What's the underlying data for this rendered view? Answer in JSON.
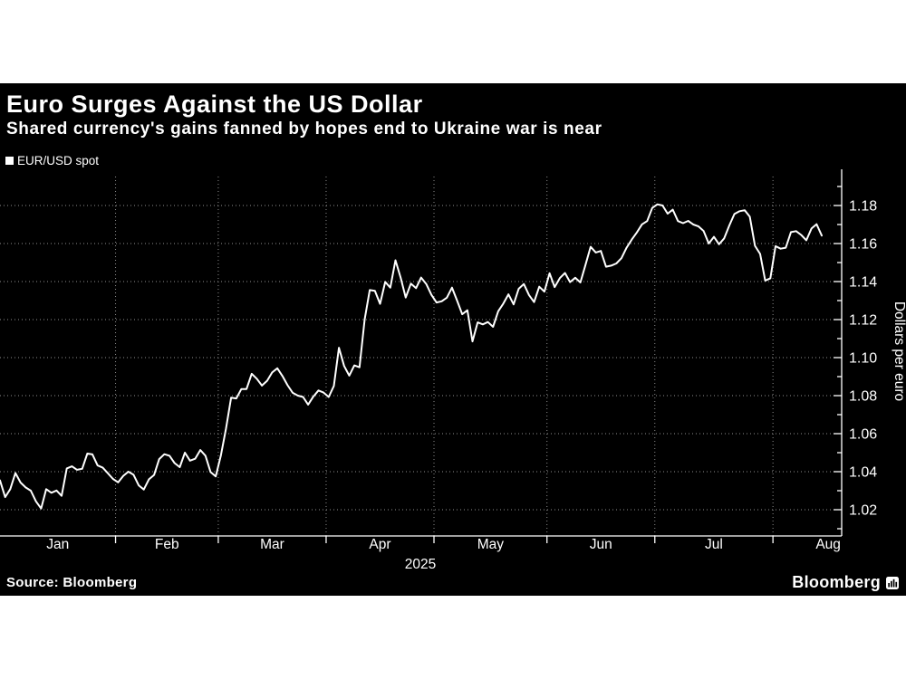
{
  "header": {
    "title": "Euro Surges Against the US Dollar",
    "subtitle": "Shared currency's gains fanned by hopes end to Ukraine war is near"
  },
  "legend": {
    "label": "EUR/USD spot"
  },
  "footer": {
    "source": "Source: Bloomberg",
    "brand": "Bloomberg"
  },
  "colors": {
    "background": "#000000",
    "text": "#ffffff",
    "line": "#ffffff",
    "grid": "#8f8f8f",
    "axis": "#ffffff"
  },
  "chart_data": {
    "type": "line",
    "title": "Euro Surges Against the US Dollar",
    "xlabel": "2025",
    "ylabel": "Dollars per euro",
    "year_label": "2025",
    "x_months": [
      "Jan",
      "Feb",
      "Mar",
      "Apr",
      "May",
      "Jun",
      "Jul",
      "Aug"
    ],
    "y_ticks": [
      1.02,
      1.04,
      1.06,
      1.08,
      1.1,
      1.12,
      1.14,
      1.16,
      1.18
    ],
    "ylim": [
      1.006,
      1.195
    ],
    "grid": true,
    "legend_position": "top-left",
    "series": [
      {
        "name": "EUR/USD spot",
        "points": [
          [
            "12/31",
            1.0354
          ],
          [
            "1/2",
            1.0266
          ],
          [
            "1/3",
            1.0308
          ],
          [
            "1/6",
            1.0393
          ],
          [
            "1/7",
            1.0343
          ],
          [
            "1/8",
            1.0317
          ],
          [
            "1/9",
            1.03
          ],
          [
            "1/10",
            1.0244
          ],
          [
            "1/13",
            1.0206
          ],
          [
            "1/14",
            1.0308
          ],
          [
            "1/15",
            1.0289
          ],
          [
            "1/16",
            1.0301
          ],
          [
            "1/17",
            1.0273
          ],
          [
            "1/20",
            1.0417
          ],
          [
            "1/21",
            1.0428
          ],
          [
            "1/22",
            1.041
          ],
          [
            "1/23",
            1.0415
          ],
          [
            "1/24",
            1.0495
          ],
          [
            "1/27",
            1.0491
          ],
          [
            "1/28",
            1.0433
          ],
          [
            "1/29",
            1.0421
          ],
          [
            "1/30",
            1.0392
          ],
          [
            "1/31",
            1.0362
          ],
          [
            "2/3",
            1.0344
          ],
          [
            "2/4",
            1.0378
          ],
          [
            "2/5",
            1.04
          ],
          [
            "2/6",
            1.0384
          ],
          [
            "2/7",
            1.0328
          ],
          [
            "2/10",
            1.0306
          ],
          [
            "2/11",
            1.036
          ],
          [
            "2/12",
            1.0383
          ],
          [
            "2/13",
            1.0466
          ],
          [
            "2/14",
            1.0492
          ],
          [
            "2/17",
            1.0484
          ],
          [
            "2/18",
            1.0445
          ],
          [
            "2/19",
            1.0424
          ],
          [
            "2/20",
            1.05
          ],
          [
            "2/21",
            1.0458
          ],
          [
            "2/24",
            1.0468
          ],
          [
            "2/25",
            1.0514
          ],
          [
            "2/26",
            1.0484
          ],
          [
            "2/27",
            1.0398
          ],
          [
            "2/28",
            1.0375
          ],
          [
            "3/3",
            1.0485
          ],
          [
            "3/4",
            1.0625
          ],
          [
            "3/5",
            1.0789
          ],
          [
            "3/6",
            1.0785
          ],
          [
            "3/7",
            1.0835
          ],
          [
            "3/10",
            1.0835
          ],
          [
            "3/11",
            1.0915
          ],
          [
            "3/12",
            1.0889
          ],
          [
            "3/13",
            1.0853
          ],
          [
            "3/14",
            1.0878
          ],
          [
            "3/17",
            1.0922
          ],
          [
            "3/18",
            1.0944
          ],
          [
            "3/19",
            1.0903
          ],
          [
            "3/20",
            1.0855
          ],
          [
            "3/21",
            1.0815
          ],
          [
            "3/24",
            1.08
          ],
          [
            "3/25",
            1.0793
          ],
          [
            "3/26",
            1.0753
          ],
          [
            "3/27",
            1.0795
          ],
          [
            "3/28",
            1.0827
          ],
          [
            "3/31",
            1.0816
          ],
          [
            "4/1",
            1.0793
          ],
          [
            "4/2",
            1.0851
          ],
          [
            "4/3",
            1.1052
          ],
          [
            "4/4",
            1.0956
          ],
          [
            "4/7",
            1.0905
          ],
          [
            "4/8",
            1.0959
          ],
          [
            "4/9",
            1.0949
          ],
          [
            "4/10",
            1.1201
          ],
          [
            "4/11",
            1.1355
          ],
          [
            "4/14",
            1.1351
          ],
          [
            "4/15",
            1.1283
          ],
          [
            "4/16",
            1.1398
          ],
          [
            "4/17",
            1.1368
          ],
          [
            "4/21",
            1.1512
          ],
          [
            "4/22",
            1.1421
          ],
          [
            "4/23",
            1.1316
          ],
          [
            "4/24",
            1.1389
          ],
          [
            "4/25",
            1.1365
          ],
          [
            "4/28",
            1.1421
          ],
          [
            "4/29",
            1.1387
          ],
          [
            "4/30",
            1.133
          ],
          [
            "5/1",
            1.129
          ],
          [
            "5/2",
            1.1296
          ],
          [
            "5/5",
            1.1315
          ],
          [
            "5/6",
            1.1368
          ],
          [
            "5/7",
            1.13
          ],
          [
            "5/8",
            1.1228
          ],
          [
            "5/9",
            1.1249
          ],
          [
            "5/12",
            1.1085
          ],
          [
            "5/13",
            1.1185
          ],
          [
            "5/14",
            1.1175
          ],
          [
            "5/15",
            1.1187
          ],
          [
            "5/16",
            1.1162
          ],
          [
            "5/19",
            1.1244
          ],
          [
            "5/20",
            1.1284
          ],
          [
            "5/21",
            1.1333
          ],
          [
            "5/22",
            1.128
          ],
          [
            "5/23",
            1.1362
          ],
          [
            "5/26",
            1.1387
          ],
          [
            "5/27",
            1.1329
          ],
          [
            "5/28",
            1.1292
          ],
          [
            "5/29",
            1.1373
          ],
          [
            "5/30",
            1.1347
          ],
          [
            "6/2",
            1.1444
          ],
          [
            "6/3",
            1.1371
          ],
          [
            "6/4",
            1.1418
          ],
          [
            "6/5",
            1.1445
          ],
          [
            "6/6",
            1.1397
          ],
          [
            "6/9",
            1.142
          ],
          [
            "6/10",
            1.1395
          ],
          [
            "6/11",
            1.1487
          ],
          [
            "6/12",
            1.1583
          ],
          [
            "6/13",
            1.1553
          ],
          [
            "6/16",
            1.1561
          ],
          [
            "6/17",
            1.1478
          ],
          [
            "6/18",
            1.1484
          ],
          [
            "6/19",
            1.1495
          ],
          [
            "6/20",
            1.1523
          ],
          [
            "6/23",
            1.1578
          ],
          [
            "6/24",
            1.1621
          ],
          [
            "6/25",
            1.1658
          ],
          [
            "6/26",
            1.1701
          ],
          [
            "6/27",
            1.1718
          ],
          [
            "6/30",
            1.1787
          ],
          [
            "7/1",
            1.1806
          ],
          [
            "7/2",
            1.18
          ],
          [
            "7/3",
            1.1757
          ],
          [
            "7/4",
            1.1778
          ],
          [
            "7/7",
            1.1718
          ],
          [
            "7/8",
            1.1707
          ],
          [
            "7/9",
            1.1719
          ],
          [
            "7/10",
            1.17
          ],
          [
            "7/11",
            1.169
          ],
          [
            "7/14",
            1.1666
          ],
          [
            "7/15",
            1.16
          ],
          [
            "7/16",
            1.1635
          ],
          [
            "7/17",
            1.1596
          ],
          [
            "7/18",
            1.1627
          ],
          [
            "7/21",
            1.1695
          ],
          [
            "7/22",
            1.1755
          ],
          [
            "7/23",
            1.177
          ],
          [
            "7/24",
            1.1775
          ],
          [
            "7/25",
            1.1741
          ],
          [
            "7/28",
            1.1588
          ],
          [
            "7/29",
            1.1545
          ],
          [
            "7/30",
            1.1405
          ],
          [
            "7/31",
            1.1417
          ],
          [
            "8/1",
            1.1586
          ],
          [
            "8/4",
            1.1573
          ],
          [
            "8/5",
            1.1578
          ],
          [
            "8/6",
            1.166
          ],
          [
            "8/7",
            1.1665
          ],
          [
            "8/8",
            1.1645
          ],
          [
            "8/11",
            1.1617
          ],
          [
            "8/12",
            1.1679
          ],
          [
            "8/13",
            1.1702
          ],
          [
            "8/14",
            1.1642
          ]
        ]
      }
    ]
  }
}
